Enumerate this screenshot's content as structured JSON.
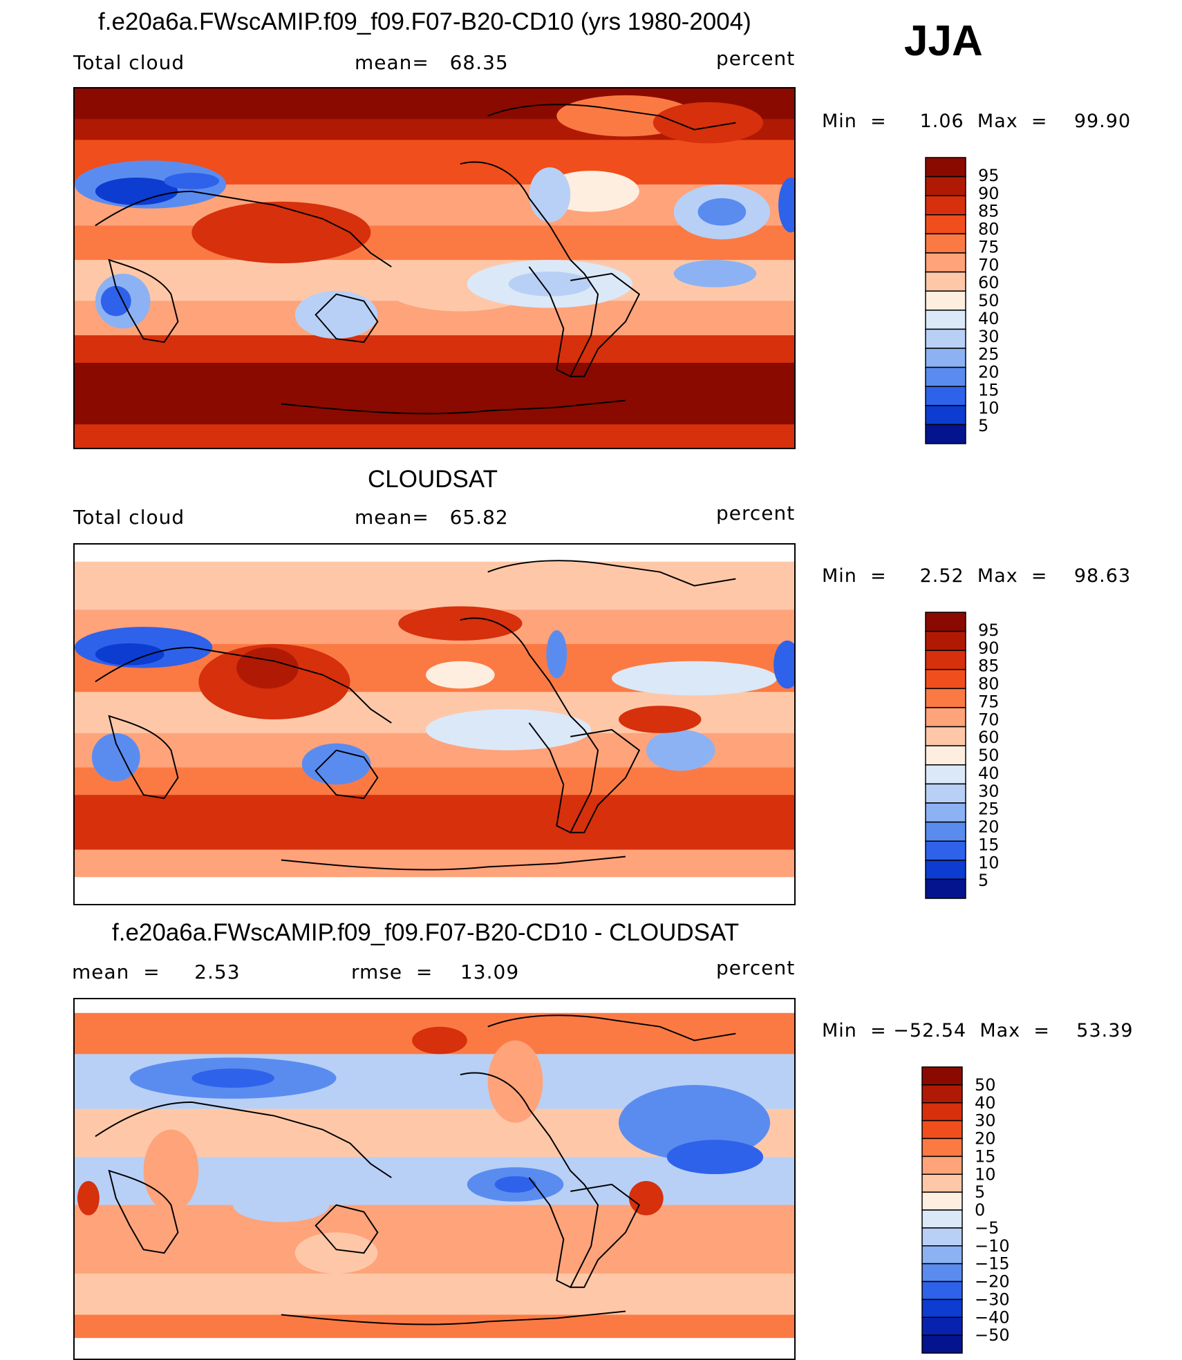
{
  "season": "JJA",
  "colors": {
    "frame": "#000000",
    "coast": "#000000",
    "background": "#ffffff"
  },
  "panels": [
    {
      "id": "model",
      "title": "f.e20a6a.FWscAMIP.f09_f09.F07-B20-CD10 (yrs 1980-2004)",
      "left_label": "Total cloud",
      "center_label": "mean=   68.35",
      "units": "percent",
      "minmax": "Min  =     1.06  Max  =    99.90",
      "colorbar": {
        "ticks": [
          "95",
          "90",
          "85",
          "80",
          "75",
          "70",
          "60",
          "50",
          "40",
          "30",
          "25",
          "20",
          "15",
          "10",
          "5"
        ],
        "colors": [
          "#8b0a00",
          "#b01a04",
          "#d6300c",
          "#f04e1c",
          "#fb7a44",
          "#fea37a",
          "#fec8a8",
          "#feeee0",
          "#dbe8f8",
          "#b8d0f6",
          "#8cb2f4",
          "#5a8cf0",
          "#2e62ea",
          "#0c3cd0",
          "#03148e"
        ]
      }
    },
    {
      "id": "obs",
      "title": "CLOUDSAT",
      "left_label": "Total cloud",
      "center_label": "mean=   65.82",
      "units": "percent",
      "minmax": "Min  =     2.52  Max  =    98.63",
      "colorbar": {
        "ticks": [
          "95",
          "90",
          "85",
          "80",
          "75",
          "70",
          "60",
          "50",
          "40",
          "30",
          "25",
          "20",
          "15",
          "10",
          "5"
        ],
        "colors": [
          "#8b0a00",
          "#b01a04",
          "#d6300c",
          "#f04e1c",
          "#fb7a44",
          "#fea37a",
          "#fec8a8",
          "#feeee0",
          "#dbe8f8",
          "#b8d0f6",
          "#8cb2f4",
          "#5a8cf0",
          "#2e62ea",
          "#0c3cd0",
          "#03148e"
        ]
      }
    },
    {
      "id": "diff",
      "title": "f.e20a6a.FWscAMIP.f09_f09.F07-B20-CD10 - CLOUDSAT",
      "left_label": "mean  =     2.53",
      "center_label": "rmse  =    13.09",
      "units": "percent",
      "minmax": "Min  = −52.54  Max  =    53.39",
      "colorbar": {
        "ticks": [
          "50",
          "40",
          "30",
          "20",
          "15",
          "10",
          "5",
          "0",
          "−5",
          "−10",
          "−15",
          "−20",
          "−30",
          "−40",
          "−50"
        ],
        "colors": [
          "#8b0a00",
          "#b01a04",
          "#d6300c",
          "#f04e1c",
          "#fb7a44",
          "#fea37a",
          "#fec8a8",
          "#feeee0",
          "#dbe8f8",
          "#b8d0f6",
          "#8cb2f4",
          "#5a8cf0",
          "#2e62ea",
          "#0c3cd0",
          "#0822b0",
          "#03148e"
        ]
      }
    }
  ]
}
